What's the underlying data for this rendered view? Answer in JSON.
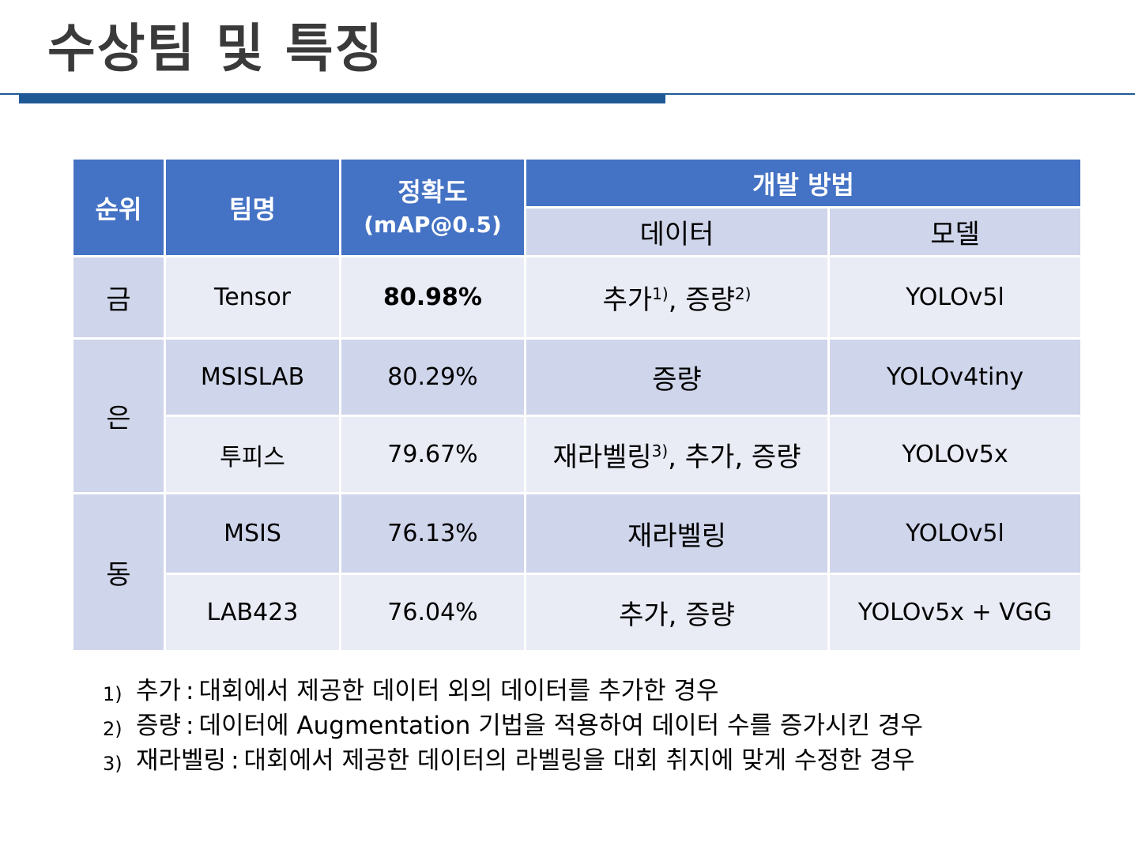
{
  "title": "수상팀 및 특징",
  "table": {
    "headers": {
      "rank": "순위",
      "team": "팀명",
      "accuracy_line1": "정확도",
      "accuracy_line2": "(mAP@0.5)",
      "method": "개발 방법",
      "data": "데이터",
      "model": "모델"
    },
    "rows": [
      {
        "rank": "금",
        "team": "Tensor",
        "accuracy": "80.98%",
        "data_a": "추가",
        "data_sup_a": "1)",
        "data_mid": ", 증량",
        "data_sup_b": "2)",
        "model": "YOLOv5l"
      },
      {
        "rank": "은",
        "team": "MSISLAB",
        "accuracy": "80.29%",
        "data": "증량",
        "model": "YOLOv4tiny"
      },
      {
        "team": "투피스",
        "accuracy": "79.67%",
        "data_a": "재라벨링",
        "data_sup_a": "3)",
        "data_mid": ", 추가, 증량",
        "model": "YOLOv5x"
      },
      {
        "rank": "동",
        "team": "MSIS",
        "accuracy": "76.13%",
        "data": "재라벨링",
        "model": "YOLOv5l"
      },
      {
        "team": "LAB423",
        "accuracy": "76.04%",
        "data": "추가, 증량",
        "model": "YOLOv5x + VGG"
      }
    ]
  },
  "notes": [
    {
      "num": "1)",
      "term": "추가",
      "text": "대회에서 제공한 데이터 외의 데이터를 추가한 경우"
    },
    {
      "num": "2)",
      "term": "증량",
      "text": "데이터에 Augmentation 기법을 적용하여 데이터 수를 증가시킨 경우"
    },
    {
      "num": "3)",
      "term": "재라벨링",
      "text": "대회에서 제공한 데이터의 라벨링을 대회 취지에 맞게 수정한 경우"
    }
  ]
}
